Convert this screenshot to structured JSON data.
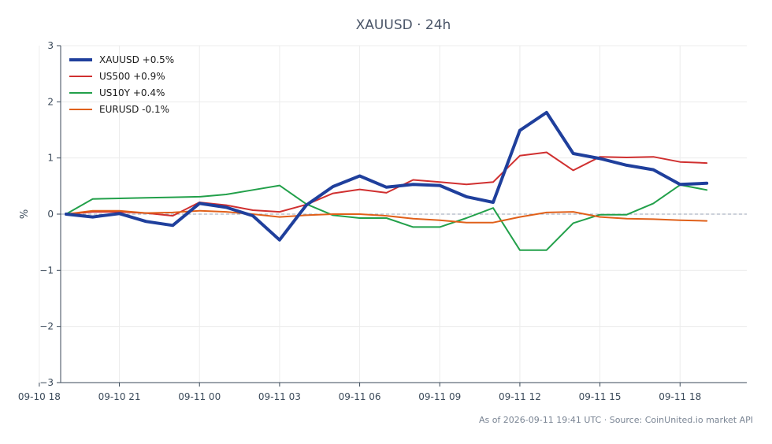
{
  "chart_data": {
    "type": "line",
    "title": "XAUUSD · 24h",
    "xlabel": "",
    "ylabel": "%",
    "ylim": [
      -3,
      3
    ],
    "xlim": [
      "2026-09-10 18:48",
      "2026-09-11 20:30"
    ],
    "grid": true,
    "zero_line": true,
    "legend_position": "top-left",
    "y_ticks": [
      3,
      2,
      1,
      0,
      -1,
      -2,
      -3
    ],
    "y_tick_labels": [
      "3",
      "2",
      "1",
      "0",
      "−1",
      "−2",
      "−3"
    ],
    "x_ticks": [
      "2026-09-10 18:00",
      "2026-09-10 21:00",
      "2026-09-11 00:00",
      "2026-09-11 03:00",
      "2026-09-11 06:00",
      "2026-09-11 09:00",
      "2026-09-11 12:00",
      "2026-09-11 15:00",
      "2026-09-11 18:00"
    ],
    "x_tick_labels": [
      "09-10 18",
      "09-10 21",
      "09-11 00",
      "09-11 03",
      "09-11 06",
      "09-11 09",
      "09-11 12",
      "09-11 15",
      "09-11 18"
    ],
    "x": [
      "2026-09-10 19:00",
      "2026-09-10 20:00",
      "2026-09-10 21:00",
      "2026-09-10 22:00",
      "2026-09-10 23:00",
      "2026-09-11 00:00",
      "2026-09-11 01:00",
      "2026-09-11 02:00",
      "2026-09-11 03:00",
      "2026-09-11 04:00",
      "2026-09-11 05:00",
      "2026-09-11 06:00",
      "2026-09-11 07:00",
      "2026-09-11 08:00",
      "2026-09-11 09:00",
      "2026-09-11 10:00",
      "2026-09-11 11:00",
      "2026-09-11 12:00",
      "2026-09-11 13:00",
      "2026-09-11 14:00",
      "2026-09-11 15:00",
      "2026-09-11 16:00",
      "2026-09-11 17:00",
      "2026-09-11 18:00",
      "2026-09-11 19:00"
    ],
    "series": [
      {
        "name": "XAUUSD +0.5%",
        "color": "#1f3f9c",
        "width": "thick",
        "values": [
          0.0,
          -0.05,
          0.01,
          -0.13,
          -0.2,
          0.19,
          0.12,
          -0.03,
          -0.46,
          0.16,
          0.49,
          0.68,
          0.48,
          0.53,
          0.51,
          0.31,
          0.21,
          1.49,
          1.81,
          1.08,
          0.99,
          0.87,
          0.79,
          0.53,
          0.55
        ]
      },
      {
        "name": "US500 +0.9%",
        "color": "#d03030",
        "width": "thin",
        "values": [
          0.0,
          0.04,
          0.04,
          0.02,
          -0.03,
          0.21,
          0.16,
          0.07,
          0.04,
          0.17,
          0.37,
          0.44,
          0.38,
          0.61,
          0.57,
          0.53,
          0.57,
          1.04,
          1.1,
          0.78,
          1.02,
          1.01,
          1.02,
          0.93,
          0.91
        ]
      },
      {
        "name": "US10Y +0.4%",
        "color": "#22a04a",
        "width": "thin",
        "values": [
          0.0,
          0.27,
          0.28,
          0.29,
          0.3,
          0.31,
          0.35,
          0.43,
          0.51,
          0.18,
          -0.02,
          -0.07,
          -0.07,
          -0.23,
          -0.23,
          -0.07,
          0.11,
          -0.64,
          -0.64,
          -0.16,
          -0.01,
          -0.01,
          0.19,
          0.52,
          0.43
        ]
      },
      {
        "name": "EURUSD -0.1%",
        "color": "#e0601a",
        "width": "thin",
        "values": [
          0.0,
          0.06,
          0.06,
          0.02,
          0.03,
          0.06,
          0.04,
          0.0,
          -0.05,
          -0.02,
          0.0,
          0.0,
          -0.03,
          -0.08,
          -0.11,
          -0.15,
          -0.15,
          -0.05,
          0.03,
          0.04,
          -0.05,
          -0.08,
          -0.09,
          -0.11,
          -0.12
        ]
      }
    ]
  },
  "footer": {
    "note": "As of 2026-09-11 19:41 UTC · Source: CoinUnited.io market API"
  }
}
